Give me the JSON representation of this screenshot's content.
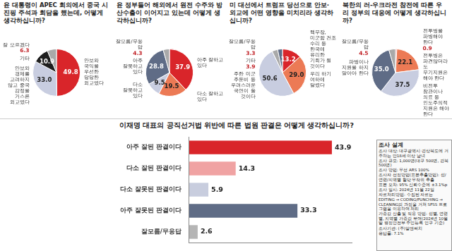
{
  "chart_data": [
    {
      "type": "pie",
      "title": "윤 대통령이 APEC 회의에서 중국 시진핑 주석과 회담을 했는데, 어떻게 생각하십니까?",
      "categories": [
        "안보와 국익을 우선한 당당한 외교였다",
        "안보와 경제를 고려하지 않고 중국 감정을 거스른 외교였다",
        "기타",
        "잘 모르겠다"
      ],
      "values": [
        49.8,
        33.0,
        10.9,
        6.3
      ],
      "value_labels": [
        "49.8",
        "33.0",
        "10.9",
        "6.3"
      ],
      "colors": [
        "#d9252a",
        "#c8cde0",
        "#1e1e1e",
        "#a9a9a9"
      ],
      "data_labels": true
    },
    {
      "type": "pie",
      "title": "윤 정부들어 해외에서 원전 수주와 방산수출이 이어지고 있는데 어떻게 생각하십니까?",
      "categories": [
        "아주 잘하고 있다",
        "다소 잘하고 있다",
        "다소 잘못하고 있다",
        "아주 잘못하고 있다",
        "잘모름/무응답"
      ],
      "values": [
        37.9,
        19.5,
        9.5,
        28.8,
        4.3
      ],
      "value_labels": [
        "37.9",
        "19.5",
        "9.5",
        "28.8",
        "4.3"
      ],
      "colors": [
        "#d9252a",
        "#ec7a55",
        "#c8cde0",
        "#5f6c86",
        "#a9a9a9"
      ],
      "data_labels": true
    },
    {
      "type": "pie",
      "title": "미 대선에서 트럼프 당선으로 안보·외교에 어떤 영향을 미치리라 생각하십니까?",
      "categories": [
        "핵무장, 미군함 건조 수리 등 한국에 유리한 기회가 될 것이다",
        "우리 하기 여하에 달렸다",
        "주한 미군 주둔비 등 우려스러운 국면이 올 것이다",
        "기타",
        "잘모름/무응답"
      ],
      "values": [
        13.2,
        29.0,
        50.6,
        3.9,
        3.3
      ],
      "value_labels": [
        "13.2",
        "29.0",
        "50.6",
        "3.9",
        "3.3"
      ],
      "colors": [
        "#d9252a",
        "#ec7a55",
        "#c8cde0",
        "#a9a9a9",
        "#5f6c86"
      ],
      "data_labels": true
    },
    {
      "type": "pie",
      "title": "북한의 러-우크라전 참전에 따른 우리 정부의 대응에 어떻게 생각하십니까?",
      "categories": [
        "전투병을 파병해야 한다",
        "전투병은 파견않더라도 무기지원은 해야 한다",
        "비전투 참관이나 의료 등 인도주의적 지원은 해야 한다",
        "파병이나 지원을 하지 말아야 한다",
        "잘모름/무응답"
      ],
      "values": [
        0.9,
        22.1,
        37.5,
        35.0,
        4.5
      ],
      "value_labels": [
        "0.9",
        "22.1",
        "37.5",
        "35.0",
        "4.5"
      ],
      "colors": [
        "#d9252a",
        "#ec7a55",
        "#c8cde0",
        "#5f6c86",
        "#a9a9a9"
      ],
      "data_labels": true
    },
    {
      "type": "bar",
      "orientation": "horizontal",
      "title": "이재명 대표의 공직선거법 위반에 따른 법원 판결은 어떻게 생각하십니까?",
      "categories": [
        "아주 잘된 판결이다",
        "다소 잘된 판결이다",
        "다소 잘못된 판결이다",
        "아주 잘못된 판결이다",
        "잘모름/무응답"
      ],
      "values": [
        43.9,
        14.3,
        5.9,
        33.3,
        2.6
      ],
      "colors": [
        "#d9252a",
        "#f0a3a3",
        "#c8cdde",
        "#5f6c86",
        "#b5b5b5"
      ],
      "xlim": [
        0,
        50
      ],
      "grid": false,
      "tick_labels": "y",
      "data_labels": true
    }
  ],
  "survey": {
    "title": "조사 설계",
    "lines": [
      "조사 대상: 대구광역시·경상북도에 거주하는 만18세 이상 남녀",
      "조사 규모: 1,000명(대구 500명, 경북 500명)",
      "조사 방법: 무선 ARS 100%",
      "조사자 선정방법(표본추출방법): 성/연령/지역별 할당 무작위 추출",
      "표본 오차: 95% 신뢰수준에 ±3.1%p",
      "조사 일시: 2024년 11월 22일",
      "자료처리방법: 수집된 자료는 EDITING → CODING/PUNCHING → CLEANING의 과정을 거쳐 SPSS 프로그램을 이용하여 처리",
      "가중값 산출 및 적용 방법: 성별, 연령별, 지역별 가중값 부여(2024년 10월 말 행정안전부 주민등록 인구 기준)",
      "조사기관: (주)알앤써치",
      "응답률: 7.1%"
    ]
  }
}
